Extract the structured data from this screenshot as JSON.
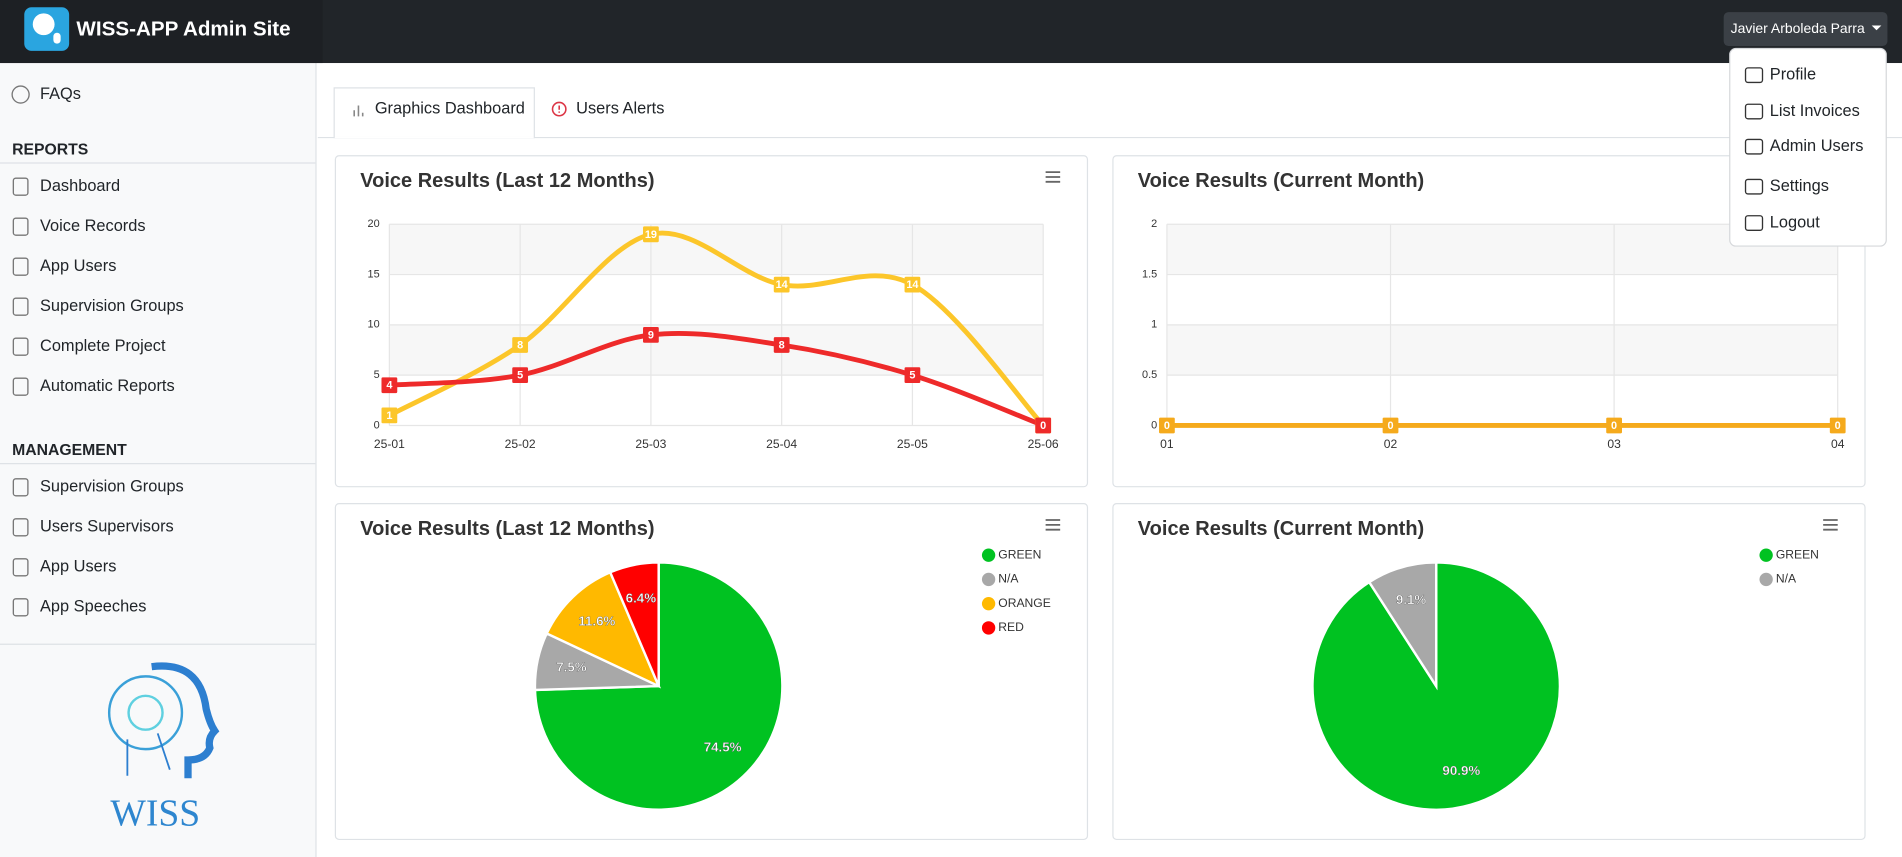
{
  "header": {
    "title": "WISS-APP Admin Site",
    "user": "Javier Arboleda Parra"
  },
  "dropdown": [
    "Profile",
    "List Invoices",
    "Admin Users",
    "Settings",
    "Logout"
  ],
  "sidebar": {
    "top": [
      "FAQs"
    ],
    "sections": [
      {
        "title": "REPORTS",
        "items": [
          "Dashboard",
          "Voice Records",
          "App Users",
          "Supervision Groups",
          "Complete Project",
          "Automatic Reports"
        ]
      },
      {
        "title": "MANAGEMENT",
        "items": [
          "Supervision Groups",
          "Users Supervisors",
          "App Users",
          "App Speeches"
        ]
      }
    ],
    "logo": "WISS"
  },
  "tabs": [
    "Graphics Dashboard",
    "Users Alerts"
  ],
  "chart_data": [
    {
      "type": "line",
      "title": "Voice Results (Last 12 Months)",
      "categories": [
        "25-01",
        "25-02",
        "25-03",
        "25-04",
        "25-05",
        "25-06"
      ],
      "series": [
        {
          "color": "#fcc62a",
          "values": [
            1,
            8,
            19,
            14,
            14,
            0
          ]
        },
        {
          "color": "#ee2a2a",
          "values": [
            4,
            5,
            9,
            8,
            5,
            0
          ]
        }
      ],
      "ylim": [
        0,
        20
      ],
      "yticks": [
        0,
        5,
        10,
        15,
        20
      ],
      "grid": true
    },
    {
      "type": "line",
      "title": "Voice Results (Current Month)",
      "categories": [
        "01",
        "02",
        "03",
        "04"
      ],
      "series": [
        {
          "color": "#f5aa1c",
          "values": [
            0,
            0,
            0,
            0
          ]
        }
      ],
      "ylim": [
        0,
        2
      ],
      "yticks": [
        0,
        0.5,
        1,
        1.5,
        2
      ],
      "grid": true
    },
    {
      "type": "pie",
      "title": "Voice Results (Last 12 Months)",
      "categories": [
        "GREEN",
        "N/A",
        "ORANGE",
        "RED"
      ],
      "values": [
        74.5,
        7.5,
        11.6,
        6.4
      ],
      "value_labels": [
        "74.5%",
        "7.5%",
        "11.6%",
        "6.4%"
      ],
      "colors": [
        "#00c221",
        "#a8a8a8",
        "#ffb900",
        "#ff0000"
      ],
      "legend": "right"
    },
    {
      "type": "pie",
      "title": "Voice Results (Current Month)",
      "categories": [
        "GREEN",
        "N/A"
      ],
      "values": [
        90.9,
        9.1
      ],
      "value_labels": [
        "90.9%",
        "9.1%"
      ],
      "colors": [
        "#00c221",
        "#a8a8a8"
      ],
      "legend": "right"
    }
  ]
}
